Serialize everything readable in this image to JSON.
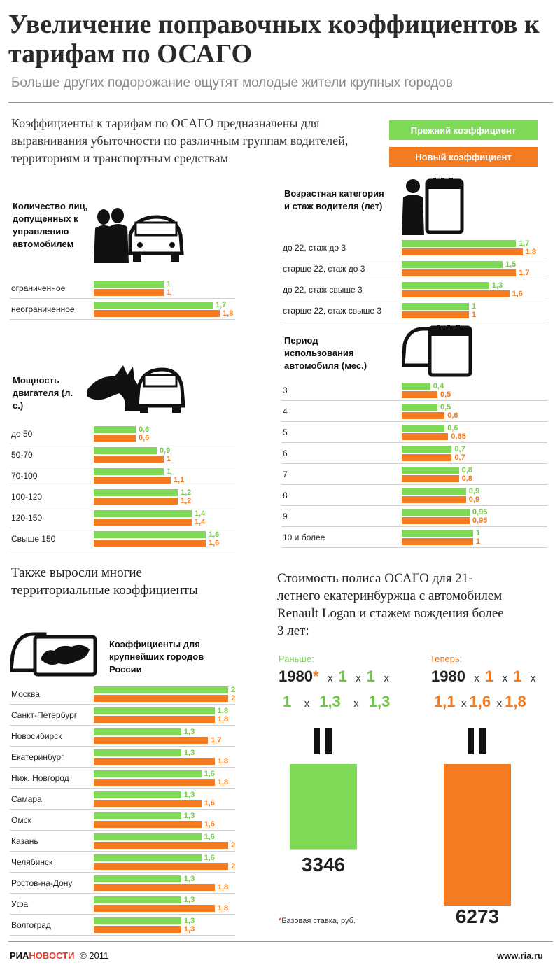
{
  "header": {
    "title": "Увеличение поправочных коэффициентов к тарифам по ОСАГО",
    "subtitle": "Больше других подорожание ощутят молодые жители крупных городов"
  },
  "intro": "Коэффициенты к тарифам по ОСАГО предназначены для выравнивания убыточности по различным группам водителей, территориям и транспортным средствам",
  "legend": {
    "old": "Прежний коэффициент",
    "new": "Новый коэффициент"
  },
  "colors": {
    "old": "#7ed957",
    "new": "#f47b20"
  },
  "sections": {
    "drivers": "Количество лиц, допущенных к управлению автомобилем",
    "power": "Мощность двигателя (л. с.)",
    "age": "Возрастная категория и стаж водителя (лет)",
    "period": "Период использования автомобиля (мес.)",
    "cities": "Коэффициенты для крупнейших городов России"
  },
  "territorial_heading": "Также выросли многие территориальные коэффициенты",
  "cost": {
    "heading": "Стоимость полиса ОСАГО для 21-летнего екатеринбуржца с автомобилем Renault Logan и стажем вождения более 3 лет:",
    "before_label": "Раньше:",
    "after_label": "Теперь:",
    "base": "1980",
    "star": "*",
    "mul": "x",
    "before_factors": [
      "1",
      "1",
      "1",
      "1,3",
      "1,3"
    ],
    "after_factors": [
      "1",
      "1",
      "1,1",
      "1,6",
      "1,8"
    ],
    "before_total": "3346",
    "after_total": "6273",
    "footnote": "Базовая ставка, руб."
  },
  "footer": {
    "brand_a": "РИА",
    "brand_b": "НОВОСТИ",
    "year": "© 2011",
    "site": "www.ria.ru"
  },
  "chart_data": [
    {
      "type": "bar",
      "title": "Количество лиц, допущенных к управлению автомобилем",
      "categories": [
        "ограниченное",
        "неограниченное"
      ],
      "series": [
        {
          "name": "Прежний коэффициент",
          "values": [
            1,
            1.7
          ]
        },
        {
          "name": "Новый коэффициент",
          "values": [
            1,
            1.8
          ]
        }
      ],
      "value_labels": [
        [
          "1",
          "1,7"
        ],
        [
          "1",
          "1,8"
        ]
      ]
    },
    {
      "type": "bar",
      "title": "Мощность двигателя (л. с.)",
      "categories": [
        "до 50",
        "50-70",
        "70-100",
        "100-120",
        "120-150",
        "Свыше 150"
      ],
      "series": [
        {
          "name": "Прежний коэффициент",
          "values": [
            0.6,
            0.9,
            1,
            1.2,
            1.4,
            1.6
          ]
        },
        {
          "name": "Новый коэффициент",
          "values": [
            0.6,
            1,
            1.1,
            1.2,
            1.4,
            1.6
          ]
        }
      ],
      "value_labels": [
        [
          "0,6",
          "0,9",
          "1",
          "1,2",
          "1,4",
          "1,6"
        ],
        [
          "0,6",
          "1",
          "1,1",
          "1,2",
          "1,4",
          "1,6"
        ]
      ]
    },
    {
      "type": "bar",
      "title": "Возрастная категория и стаж водителя (лет)",
      "categories": [
        "до 22, стаж до 3",
        "старше 22, стаж до 3",
        "до 22, стаж свыше 3",
        "старше 22, стаж свыше 3"
      ],
      "series": [
        {
          "name": "Прежний коэффициент",
          "values": [
            1.7,
            1.5,
            1.3,
            1
          ]
        },
        {
          "name": "Новый коэффициент",
          "values": [
            1.8,
            1.7,
            1.6,
            1
          ]
        }
      ],
      "value_labels": [
        [
          "1,7",
          "1,5",
          "1,3",
          "1"
        ],
        [
          "1,8",
          "1,7",
          "1,6",
          "1"
        ]
      ]
    },
    {
      "type": "bar",
      "title": "Период использования автомобиля (мес.)",
      "categories": [
        "3",
        "4",
        "5",
        "6",
        "7",
        "8",
        "9",
        "10 и более"
      ],
      "series": [
        {
          "name": "Прежний коэффициент",
          "values": [
            0.4,
            0.5,
            0.6,
            0.7,
            0.8,
            0.9,
            0.95,
            1
          ]
        },
        {
          "name": "Новый коэффициент",
          "values": [
            0.5,
            0.6,
            0.65,
            0.7,
            0.8,
            0.9,
            0.95,
            1
          ]
        }
      ],
      "value_labels": [
        [
          "0,4",
          "0,5",
          "0,6",
          "0,7",
          "0,8",
          "0,9",
          "0,95",
          "1"
        ],
        [
          "0,5",
          "0,6",
          "0,65",
          "0,7",
          "0,8",
          "0,9",
          "0,95",
          "1"
        ]
      ]
    },
    {
      "type": "bar",
      "title": "Коэффициенты для крупнейших городов России",
      "categories": [
        "Москва",
        "Санкт-Петербург",
        "Новосибирск",
        "Екатеринбург",
        "Ниж. Новгород",
        "Самара",
        "Омск",
        "Казань",
        "Челябинск",
        "Ростов-на-Дону",
        "Уфа",
        "Волгоград"
      ],
      "series": [
        {
          "name": "Прежний коэффициент",
          "values": [
            2,
            1.8,
            1.3,
            1.3,
            1.6,
            1.3,
            1.3,
            1.6,
            1.6,
            1.3,
            1.3,
            1.3
          ]
        },
        {
          "name": "Новый коэффициент",
          "values": [
            2,
            1.8,
            1.7,
            1.8,
            1.8,
            1.6,
            1.6,
            2,
            2,
            1.8,
            1.8,
            1.3
          ]
        }
      ],
      "value_labels": [
        [
          "2",
          "1,8",
          "1,3",
          "1,3",
          "1,6",
          "1,3",
          "1,3",
          "1,6",
          "1,6",
          "1,3",
          "1,3",
          "1,3"
        ],
        [
          "2",
          "1,8",
          "1,7",
          "1,8",
          "1,8",
          "1,6",
          "1,6",
          "2",
          "2",
          "1,8",
          "1,8",
          "1,3"
        ]
      ]
    },
    {
      "type": "bar",
      "title": "Стоимость полиса ОСАГО",
      "categories": [
        "Раньше:",
        "Теперь:"
      ],
      "values": [
        3346,
        6273
      ]
    }
  ]
}
